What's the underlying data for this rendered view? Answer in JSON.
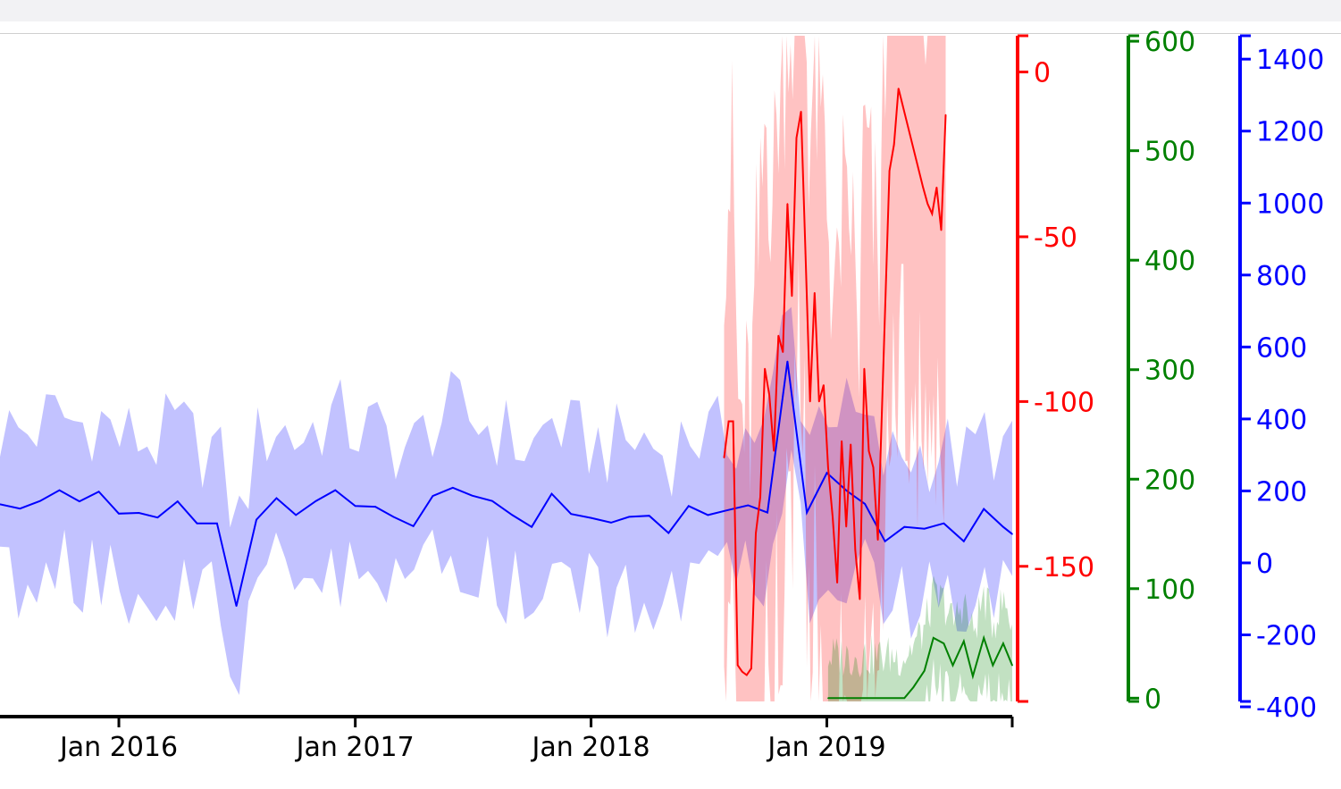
{
  "chart_data": {
    "type": "line",
    "title": "",
    "x_range": [
      "2015-07-01",
      "2019-10-15"
    ],
    "x_ticks": [
      "Jan 2016",
      "Jan 2017",
      "Jan 2018",
      "Jan 2019"
    ],
    "axes": [
      {
        "id": "red",
        "color": "#ff0000",
        "range": [
          -191,
          11
        ],
        "ticks": [
          0,
          -50,
          -100,
          -150
        ]
      },
      {
        "id": "green",
        "color": "#008000",
        "range": [
          -3,
          605
        ],
        "ticks": [
          600,
          500,
          400,
          300,
          200,
          100,
          0
        ]
      },
      {
        "id": "blue",
        "color": "#0000ff",
        "range": [
          -385,
          1465
        ],
        "ticks": [
          1400,
          1200,
          1000,
          800,
          600,
          400,
          200,
          0,
          -200,
          -400
        ]
      }
    ],
    "series": [
      {
        "id": "blue_series",
        "axis": "blue",
        "color": "#0000ff",
        "band_color": "#0000ff",
        "band_opacity": 0.24,
        "points": [
          [
            "2015-07-01",
            163
          ],
          [
            "2015-08-01",
            151
          ],
          [
            "2015-09-01",
            172
          ],
          [
            "2015-10-01",
            202
          ],
          [
            "2015-11-01",
            171
          ],
          [
            "2015-12-01",
            198
          ],
          [
            "2016-01-01",
            137
          ],
          [
            "2016-02-01",
            139
          ],
          [
            "2016-03-01",
            126
          ],
          [
            "2016-04-01",
            171
          ],
          [
            "2016-05-01",
            110
          ],
          [
            "2016-06-01",
            110
          ],
          [
            "2016-07-01",
            -120
          ],
          [
            "2016-08-01",
            120
          ],
          [
            "2016-09-01",
            180
          ],
          [
            "2016-10-01",
            133
          ],
          [
            "2016-11-01",
            172
          ],
          [
            "2016-12-01",
            202
          ],
          [
            "2017-01-01",
            158
          ],
          [
            "2017-02-01",
            156
          ],
          [
            "2017-03-01",
            128
          ],
          [
            "2017-04-01",
            102
          ],
          [
            "2017-05-01",
            186
          ],
          [
            "2017-06-01",
            209
          ],
          [
            "2017-07-01",
            187
          ],
          [
            "2017-08-01",
            172
          ],
          [
            "2017-09-01",
            133
          ],
          [
            "2017-10-01",
            100
          ],
          [
            "2017-11-01",
            192
          ],
          [
            "2017-12-01",
            136
          ],
          [
            "2018-01-01",
            125
          ],
          [
            "2018-02-01",
            112
          ],
          [
            "2018-03-01",
            128
          ],
          [
            "2018-04-01",
            131
          ],
          [
            "2018-05-01",
            83
          ],
          [
            "2018-06-01",
            158
          ],
          [
            "2018-07-01",
            133
          ],
          [
            "2018-08-01",
            147
          ],
          [
            "2018-09-01",
            160
          ],
          [
            "2018-10-01",
            140
          ],
          [
            "2018-11-01",
            560
          ],
          [
            "2018-12-01",
            140
          ],
          [
            "2019-01-01",
            250
          ],
          [
            "2019-02-01",
            200
          ],
          [
            "2019-03-01",
            164
          ],
          [
            "2019-04-01",
            60
          ],
          [
            "2019-05-01",
            100
          ],
          [
            "2019-06-01",
            95
          ],
          [
            "2019-07-01",
            110
          ],
          [
            "2019-08-01",
            60
          ],
          [
            "2019-09-01",
            150
          ],
          [
            "2019-10-01",
            100
          ],
          [
            "2019-10-15",
            80
          ]
        ]
      },
      {
        "id": "red_series",
        "axis": "red",
        "color": "#ff0000",
        "band_color": "#ff0000",
        "band_opacity": 0.24,
        "points": [
          [
            "2018-07-26",
            -117
          ],
          [
            "2018-08-02",
            -106
          ],
          [
            "2018-08-09",
            -106
          ],
          [
            "2018-08-16",
            -180
          ],
          [
            "2018-08-23",
            -182
          ],
          [
            "2018-08-30",
            -183
          ],
          [
            "2018-09-06",
            -181
          ],
          [
            "2018-09-13",
            -140
          ],
          [
            "2018-09-20",
            -129
          ],
          [
            "2018-09-27",
            -90
          ],
          [
            "2018-10-04",
            -98
          ],
          [
            "2018-10-11",
            -115
          ],
          [
            "2018-10-18",
            -80
          ],
          [
            "2018-10-25",
            -85
          ],
          [
            "2018-11-01",
            -40
          ],
          [
            "2018-11-08",
            -68
          ],
          [
            "2018-11-15",
            -20
          ],
          [
            "2018-11-22",
            -12
          ],
          [
            "2018-11-29",
            -55
          ],
          [
            "2018-12-06",
            -100
          ],
          [
            "2018-12-13",
            -67
          ],
          [
            "2018-12-20",
            -100
          ],
          [
            "2018-12-27",
            -95
          ],
          [
            "2019-01-03",
            -120
          ],
          [
            "2019-01-10",
            -135
          ],
          [
            "2019-01-17",
            -155
          ],
          [
            "2019-01-24",
            -112
          ],
          [
            "2019-01-31",
            -138
          ],
          [
            "2019-02-07",
            -113
          ],
          [
            "2019-02-14",
            -145
          ],
          [
            "2019-02-21",
            -160
          ],
          [
            "2019-02-28",
            -90
          ],
          [
            "2019-03-07",
            -115
          ],
          [
            "2019-03-14",
            -120
          ],
          [
            "2019-03-21",
            -142
          ],
          [
            "2019-04-08",
            -30
          ],
          [
            "2019-04-15",
            -22
          ],
          [
            "2019-04-22",
            -5
          ],
          [
            "2019-05-30",
            -35
          ],
          [
            "2019-06-06",
            -40
          ],
          [
            "2019-06-13",
            -43
          ],
          [
            "2019-06-20",
            -35
          ],
          [
            "2019-06-27",
            -48
          ],
          [
            "2019-07-04",
            -13
          ]
        ]
      },
      {
        "id": "green_series",
        "axis": "green",
        "color": "#008000",
        "band_color": "#008000",
        "band_opacity": 0.24,
        "points": [
          [
            "2019-01-03",
            0
          ],
          [
            "2019-05-01",
            0
          ],
          [
            "2019-05-15",
            10
          ],
          [
            "2019-06-01",
            25
          ],
          [
            "2019-06-15",
            55
          ],
          [
            "2019-07-01",
            50
          ],
          [
            "2019-07-15",
            30
          ],
          [
            "2019-08-01",
            52
          ],
          [
            "2019-08-15",
            20
          ],
          [
            "2019-09-01",
            55
          ],
          [
            "2019-09-15",
            30
          ],
          [
            "2019-10-01",
            50
          ],
          [
            "2019-10-15",
            30
          ]
        ]
      }
    ]
  }
}
